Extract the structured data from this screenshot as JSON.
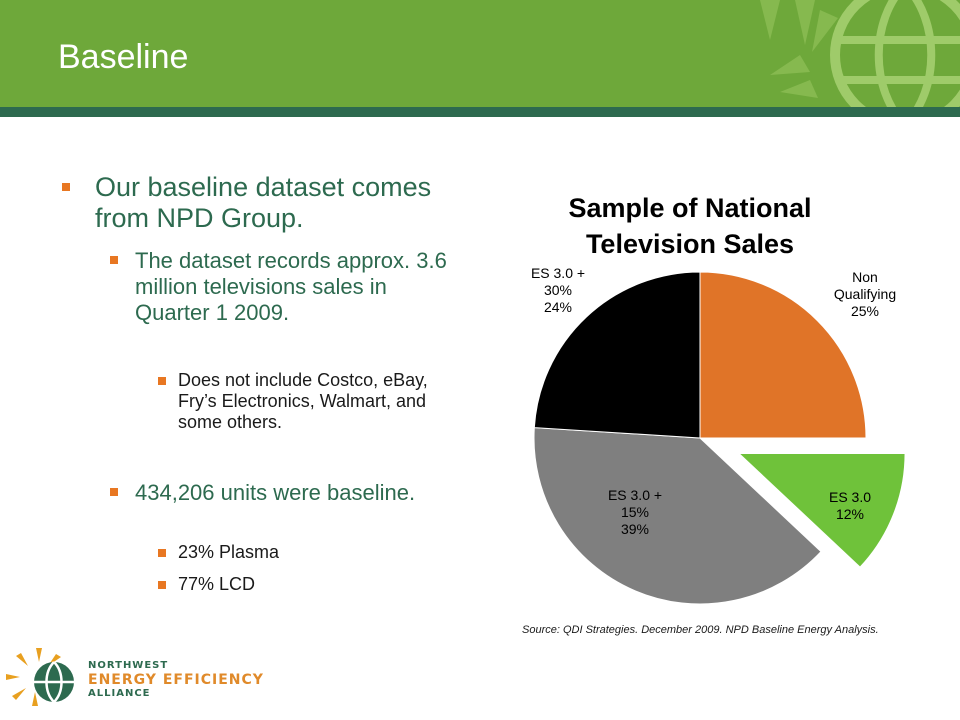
{
  "slide": {
    "title": "Baseline",
    "bullets": [
      {
        "text": "Our baseline dataset comes from NPD Group."
      },
      {
        "text": "The dataset records approx. 3.6 million televisions sales in Quarter 1 2009."
      },
      {
        "text": "Does not include Costco, eBay, Fry’s Electronics, Walmart, and some others."
      },
      {
        "text": "434,206 units were baseline."
      },
      {
        "text": "23% Plasma"
      },
      {
        "text": "77% LCD"
      }
    ],
    "source": "Source: QDI Strategies. December 2009. NPD Baseline Energy Analysis.",
    "logo": {
      "line1": "NORTHWEST",
      "line2": "ENERGY EFFICIENCY",
      "line3": "ALLIANCE"
    }
  },
  "chart_data": {
    "type": "pie",
    "title": "Sample of National Television Sales",
    "slices": [
      {
        "label": "Non Qualifying",
        "value": 25,
        "pct_label": "25%",
        "color": "#e07428",
        "exploded": false
      },
      {
        "label": "ES 3.0",
        "value": 12,
        "pct_label": "12%",
        "color": "#6fc23a",
        "exploded": true
      },
      {
        "label": "ES 3.0 + 15%",
        "value": 39,
        "pct_label": "39%",
        "color": "#7f7f7f",
        "exploded": false
      },
      {
        "label": "ES 3.0 + 30%",
        "value": 24,
        "pct_label": "24%",
        "color": "#000000",
        "exploded": false
      }
    ],
    "start": "12 o'clock, clockwise"
  }
}
